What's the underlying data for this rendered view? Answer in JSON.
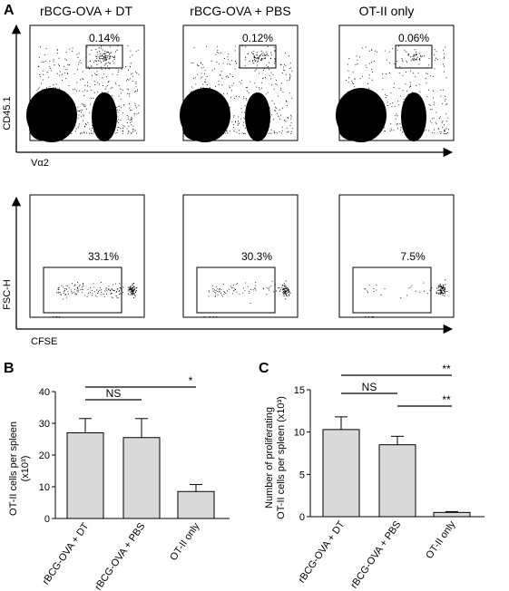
{
  "panel_a": {
    "letter": "A",
    "groups": [
      "rBCG-OVA + DT",
      "rBCG-OVA + PBS",
      "OT-II only"
    ],
    "row1": {
      "y_label": "CD45.1",
      "x_label": "Vα2",
      "gates": [
        "0.14%",
        "0.12%",
        "0.06%"
      ]
    },
    "row2": {
      "y_label": "FSC-H",
      "x_label": "CFSE",
      "gates": [
        "33.1%",
        "30.3%",
        "7.5%"
      ]
    }
  },
  "chart_data": [
    {
      "type": "bar",
      "panel": "B",
      "categories": [
        "rBCG-OVA + DT",
        "rBCG-OVA + PBS",
        "OT-II only"
      ],
      "values": [
        27,
        25.5,
        8.5
      ],
      "errors": [
        4.5,
        6,
        2.2
      ],
      "ylabel_line1": "OT-II cells per spleen",
      "ylabel_line2": "(x10³)",
      "ylim": [
        0,
        40
      ],
      "yticks": [
        "0",
        "10",
        "20",
        "30",
        "40"
      ],
      "significance": [
        {
          "from": 0,
          "to": 1,
          "label": "NS"
        },
        {
          "from": 0,
          "to": 2,
          "label": "*"
        }
      ]
    },
    {
      "type": "bar",
      "panel": "C",
      "categories": [
        "rBCG-OVA + DT",
        "rBCG-OVA + PBS",
        "OT-II only"
      ],
      "values": [
        10.3,
        8.5,
        0.5
      ],
      "errors": [
        1.5,
        1.0,
        0.1
      ],
      "ylabel_line1": "Number of proliferating",
      "ylabel_line2": "OT-II cells per spleen (x10³)",
      "ylim": [
        0,
        15
      ],
      "yticks": [
        "0",
        "5",
        "10",
        "15"
      ],
      "significance": [
        {
          "from": 0,
          "to": 1,
          "label": "NS"
        },
        {
          "from": 0,
          "to": 2,
          "label": "**"
        },
        {
          "from": 1,
          "to": 2,
          "label": "**"
        }
      ]
    }
  ]
}
